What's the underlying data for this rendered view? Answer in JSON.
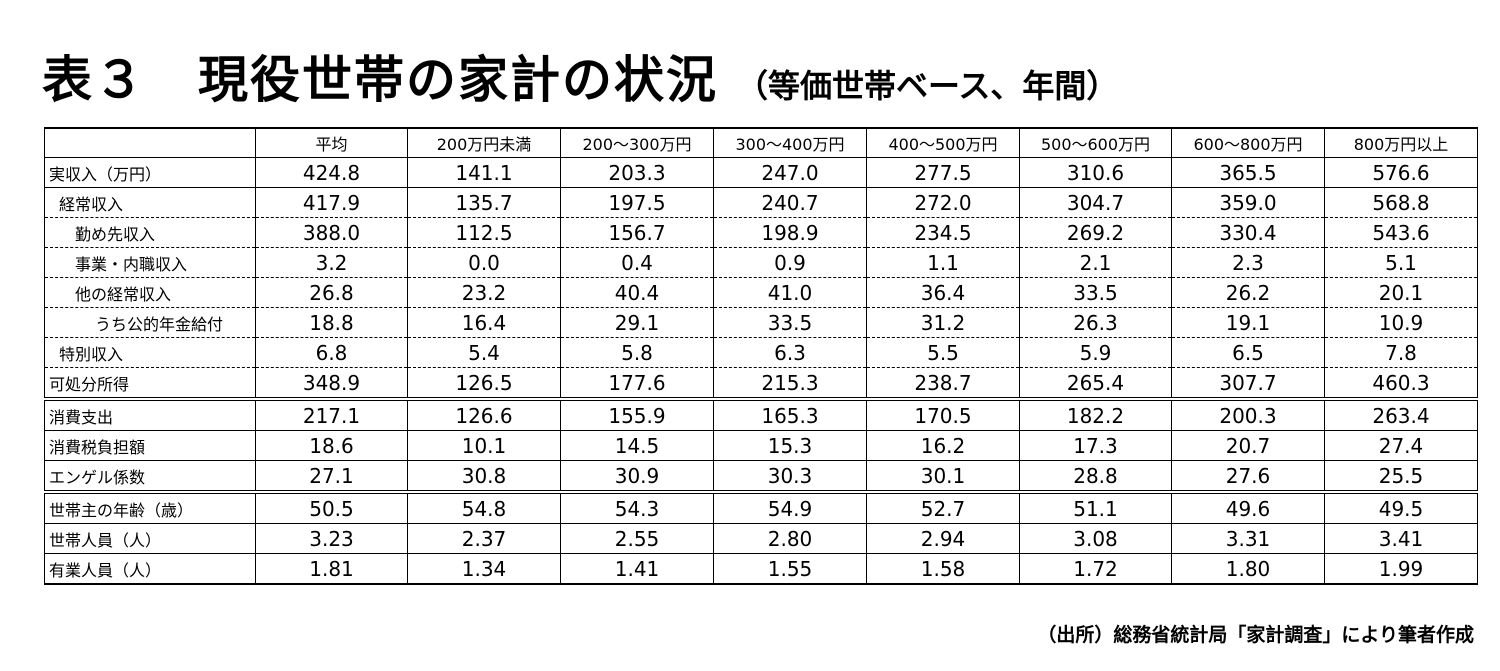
{
  "title": {
    "main": "表３　現役世帯の家計の状況",
    "sub": "（等価世帯ベース、年間）"
  },
  "table": {
    "headers": [
      "",
      "平均",
      "200万円未満",
      "200～300万円",
      "300～400万円",
      "400～500万円",
      "500～600万円",
      "600～800万円",
      "800万円以上"
    ],
    "rows": [
      {
        "label": "実収入（万円）",
        "values": [
          "424.8",
          "141.1",
          "203.3",
          "247.0",
          "277.5",
          "310.6",
          "365.5",
          "576.6"
        ]
      },
      {
        "label": "経常収入",
        "values": [
          "417.9",
          "135.7",
          "197.5",
          "240.7",
          "272.0",
          "304.7",
          "359.0",
          "568.8"
        ]
      },
      {
        "label": "勤め先収入",
        "values": [
          "388.0",
          "112.5",
          "156.7",
          "198.9",
          "234.5",
          "269.2",
          "330.4",
          "543.6"
        ]
      },
      {
        "label": "事業・内職収入",
        "values": [
          "3.2",
          "0.0",
          "0.4",
          "0.9",
          "1.1",
          "2.1",
          "2.3",
          "5.1"
        ]
      },
      {
        "label": "他の経常収入",
        "values": [
          "26.8",
          "23.2",
          "40.4",
          "41.0",
          "36.4",
          "33.5",
          "26.2",
          "20.1"
        ]
      },
      {
        "label": "うち公的年金給付",
        "values": [
          "18.8",
          "16.4",
          "29.1",
          "33.5",
          "31.2",
          "26.3",
          "19.1",
          "10.9"
        ]
      },
      {
        "label": "特別収入",
        "values": [
          "6.8",
          "5.4",
          "5.8",
          "6.3",
          "5.5",
          "5.9",
          "6.5",
          "7.8"
        ]
      },
      {
        "label": "可処分所得",
        "values": [
          "348.9",
          "126.5",
          "177.6",
          "215.3",
          "238.7",
          "265.4",
          "307.7",
          "460.3"
        ]
      },
      {
        "label": "消費支出",
        "values": [
          "217.1",
          "126.6",
          "155.9",
          "165.3",
          "170.5",
          "182.2",
          "200.3",
          "263.4"
        ]
      },
      {
        "label": "消費税負担額",
        "values": [
          "18.6",
          "10.1",
          "14.5",
          "15.3",
          "16.2",
          "17.3",
          "20.7",
          "27.4"
        ]
      },
      {
        "label": "エンゲル係数",
        "values": [
          "27.1",
          "30.8",
          "30.9",
          "30.3",
          "30.1",
          "28.8",
          "27.6",
          "25.5"
        ]
      },
      {
        "label": "世帯主の年齢（歳）",
        "values": [
          "50.5",
          "54.8",
          "54.3",
          "54.9",
          "52.7",
          "51.1",
          "49.6",
          "49.5"
        ]
      },
      {
        "label": "世帯人員（人）",
        "values": [
          "3.23",
          "2.37",
          "2.55",
          "2.80",
          "2.94",
          "3.08",
          "3.31",
          "3.41"
        ]
      },
      {
        "label": "有業人員（人）",
        "values": [
          "1.81",
          "1.34",
          "1.41",
          "1.55",
          "1.58",
          "1.72",
          "1.80",
          "1.99"
        ]
      }
    ]
  },
  "source": "（出所）総務省統計局「家計調査」により筆者作成"
}
